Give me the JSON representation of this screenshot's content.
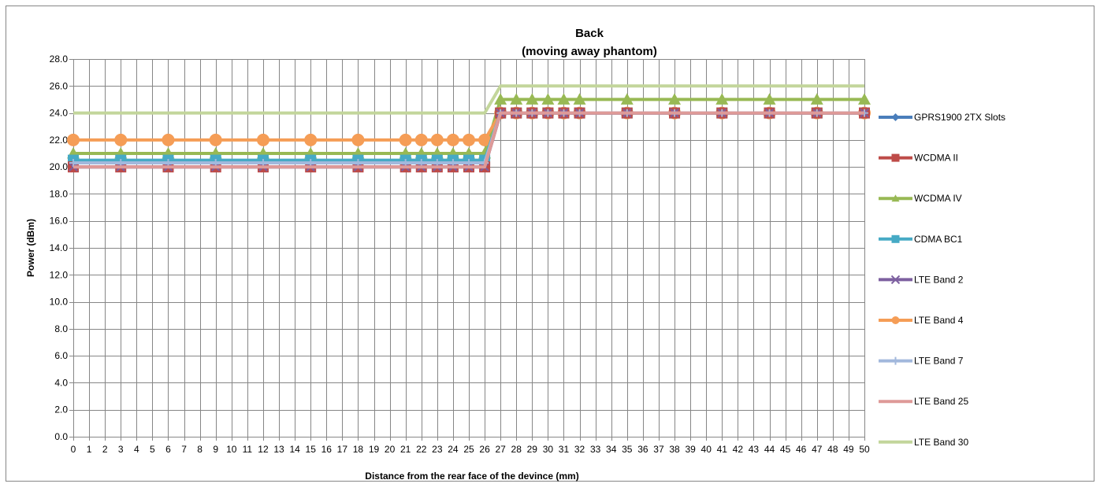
{
  "chart_data": {
    "type": "line",
    "title": "Back",
    "subtitle": "(moving away phantom)",
    "xlabel": "Distance from the rear face of the devince (mm)",
    "ylabel": "Power (dBm)",
    "ylim": [
      0,
      28
    ],
    "y_step": 2,
    "y_tick_format": "0.0",
    "xlim": [
      0,
      50
    ],
    "x_ticks": [
      0,
      1,
      2,
      3,
      4,
      5,
      6,
      7,
      8,
      9,
      10,
      11,
      12,
      13,
      14,
      15,
      16,
      17,
      18,
      19,
      20,
      21,
      22,
      23,
      24,
      25,
      26,
      27,
      28,
      29,
      30,
      31,
      32,
      33,
      34,
      35,
      36,
      37,
      38,
      39,
      40,
      41,
      42,
      43,
      44,
      45,
      46,
      47,
      48,
      49,
      50
    ],
    "x": [
      0,
      3,
      6,
      9,
      12,
      15,
      18,
      21,
      22,
      23,
      24,
      25,
      26,
      27,
      28,
      29,
      30,
      31,
      32,
      35,
      38,
      41,
      44,
      47,
      50
    ],
    "grid": true,
    "legend_position": "right",
    "series": [
      {
        "name": "GPRS1900 2TX Slots",
        "color": "#4a7ebb",
        "marker": "diamond",
        "values": [
          20,
          20,
          20,
          20,
          20,
          20,
          20,
          20,
          20,
          20,
          20,
          20,
          20,
          24,
          24,
          24,
          24,
          24,
          24,
          24,
          24,
          24,
          24,
          24,
          24
        ]
      },
      {
        "name": "WCDMA II",
        "color": "#be4b48",
        "marker": "square",
        "values": [
          20,
          20,
          20,
          20,
          20,
          20,
          20,
          20,
          20,
          20,
          20,
          20,
          20,
          24,
          24,
          24,
          24,
          24,
          24,
          24,
          24,
          24,
          24,
          24,
          24
        ]
      },
      {
        "name": "WCDMA IV",
        "color": "#98b954",
        "marker": "triangle",
        "values": [
          21,
          21,
          21,
          21,
          21,
          21,
          21,
          21,
          21,
          21,
          21,
          21,
          21,
          25,
          25,
          25,
          25,
          25,
          25,
          25,
          25,
          25,
          25,
          25,
          25
        ]
      },
      {
        "name": "CDMA BC1",
        "color": "#46aac5",
        "marker": "square",
        "values": [
          20.5,
          20.5,
          20.5,
          20.5,
          20.5,
          20.5,
          20.5,
          20.5,
          20.5,
          20.5,
          20.5,
          20.5,
          20.5,
          24,
          24,
          24,
          24,
          24,
          24,
          24,
          24,
          24,
          24,
          24,
          24
        ]
      },
      {
        "name": "LTE Band 2",
        "color": "#7d60a0",
        "marker": "x",
        "values": [
          20,
          20,
          20,
          20,
          20,
          20,
          20,
          20,
          20,
          20,
          20,
          20,
          20,
          24,
          24,
          24,
          24,
          24,
          24,
          24,
          24,
          24,
          24,
          24,
          24
        ]
      },
      {
        "name": "LTE Band 4",
        "color": "#f59d56",
        "marker": "circle",
        "values": [
          22,
          22,
          22,
          22,
          22,
          22,
          22,
          22,
          22,
          22,
          22,
          22,
          22,
          24,
          24,
          24,
          24,
          24,
          24,
          24,
          24,
          24,
          24,
          24,
          24
        ]
      },
      {
        "name": "LTE Band 7",
        "color": "#a2b8dc",
        "marker": "plus",
        "values": [
          20.3,
          20.3,
          20.3,
          20.3,
          20.3,
          20.3,
          20.3,
          20.3,
          20.3,
          20.3,
          20.3,
          20.3,
          20.3,
          24,
          24,
          24,
          24,
          24,
          24,
          24,
          24,
          24,
          24,
          24,
          24
        ]
      },
      {
        "name": "LTE Band 25",
        "color": "#de9a98",
        "marker": "none",
        "values": [
          20,
          20,
          20,
          20,
          20,
          20,
          20,
          20,
          20,
          20,
          20,
          20,
          20,
          24,
          24,
          24,
          24,
          24,
          24,
          24,
          24,
          24,
          24,
          24,
          24
        ]
      },
      {
        "name": "LTE Band 30",
        "color": "#c3d69b",
        "marker": "none",
        "values": [
          24,
          24,
          24,
          24,
          24,
          24,
          24,
          24,
          24,
          24,
          24,
          24,
          24,
          26,
          26,
          26,
          26,
          26,
          26,
          26,
          26,
          26,
          26,
          26,
          26
        ]
      }
    ]
  }
}
